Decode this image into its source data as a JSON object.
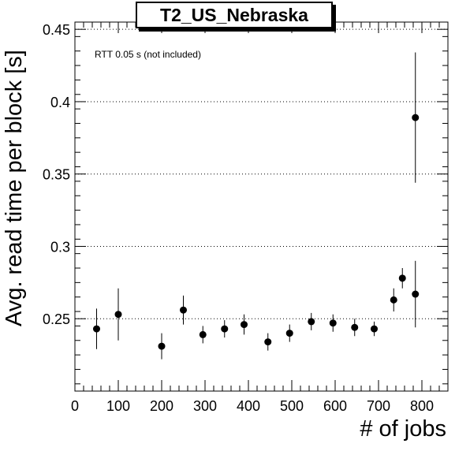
{
  "chart_data": {
    "type": "scatter",
    "title": "T2_US_Nebraska",
    "annotation": "RTT 0.05 s (not included)",
    "xlabel": "# of jobs",
    "ylabel": "Avg. read time per block [s]",
    "xlim": [
      0,
      860
    ],
    "ylim": [
      0.2,
      0.455
    ],
    "xticks": [
      0,
      100,
      200,
      300,
      400,
      500,
      600,
      700,
      800
    ],
    "yticks": [
      0.25,
      0.3,
      0.35,
      0.4,
      0.45
    ],
    "ytick_labels": [
      "0.25",
      "0.3",
      "0.35",
      "0.4",
      "0.45"
    ],
    "grid": "horizontal dotted",
    "points": [
      {
        "x": 50,
        "y": 0.243,
        "err": 0.014
      },
      {
        "x": 100,
        "y": 0.253,
        "err": 0.018
      },
      {
        "x": 200,
        "y": 0.231,
        "err": 0.009
      },
      {
        "x": 250,
        "y": 0.256,
        "err": 0.01
      },
      {
        "x": 295,
        "y": 0.239,
        "err": 0.006
      },
      {
        "x": 345,
        "y": 0.243,
        "err": 0.006
      },
      {
        "x": 390,
        "y": 0.246,
        "err": 0.007
      },
      {
        "x": 445,
        "y": 0.234,
        "err": 0.006
      },
      {
        "x": 495,
        "y": 0.24,
        "err": 0.006
      },
      {
        "x": 545,
        "y": 0.248,
        "err": 0.006
      },
      {
        "x": 595,
        "y": 0.247,
        "err": 0.006
      },
      {
        "x": 645,
        "y": 0.244,
        "err": 0.006
      },
      {
        "x": 690,
        "y": 0.243,
        "err": 0.005
      },
      {
        "x": 735,
        "y": 0.263,
        "err": 0.008
      },
      {
        "x": 755,
        "y": 0.278,
        "err": 0.007
      },
      {
        "x": 785,
        "y": 0.267,
        "err": 0.023
      },
      {
        "x": 785,
        "y": 0.389,
        "err": 0.045
      }
    ]
  }
}
